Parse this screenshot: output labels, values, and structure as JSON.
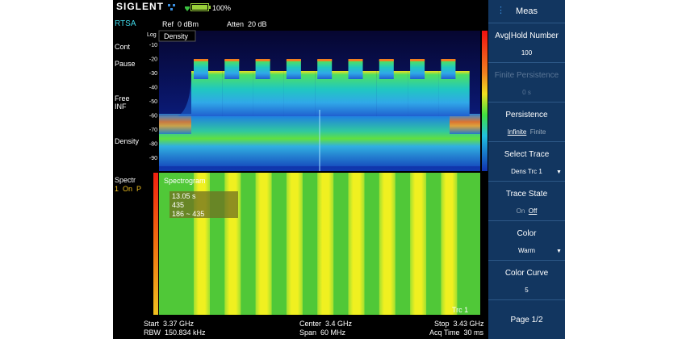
{
  "status_bar": {
    "brand": "SIGLENT",
    "battery": "100%"
  },
  "side_labels": {
    "mode": "RTSA",
    "sweep": "Cont",
    "pause": "Pause",
    "trigger": "Free",
    "trigger_value": "INF",
    "density": "Density",
    "spectrogram": "Spectr",
    "spectrogram_state": "1  On  P"
  },
  "header": {
    "ref": "Ref  0 dBm",
    "atten": "Atten  20 dB"
  },
  "density_plot": {
    "title": "Density",
    "scale": "Log",
    "y_labels": [
      -10,
      -20,
      -30,
      -40,
      -50,
      -60,
      -70,
      -80,
      -90
    ]
  },
  "spectrogram": {
    "title": "Spectrogram",
    "marker": {
      "time": "13.05 s",
      "value": "435",
      "range": "186 ~ 435"
    },
    "trace": "Trc 1"
  },
  "footer": {
    "start": "Start  3.37 GHz",
    "rbw": "RBW  150.834 kHz",
    "center": "Center  3.4 GHz",
    "span": "Span  60 MHz",
    "stop": "Stop  3.43 GHz",
    "acq_time": "Acq Time  30 ms"
  },
  "menu": {
    "title": "Meas",
    "items": [
      {
        "label": "Avg|Hold Number",
        "value": "100"
      },
      {
        "label": "Finite Persistence",
        "value": "0 s"
      },
      {
        "label": "Persistence",
        "options": [
          "Infinite",
          "Finite"
        ]
      },
      {
        "label": "Select Trace",
        "value": "Dens Trc 1"
      },
      {
        "label": "Trace State",
        "options": [
          "On",
          "Off"
        ]
      },
      {
        "label": "Color",
        "value": "Warm"
      },
      {
        "label": "Color Curve",
        "value": "5"
      },
      {
        "label": "Page 1/2"
      }
    ]
  }
}
